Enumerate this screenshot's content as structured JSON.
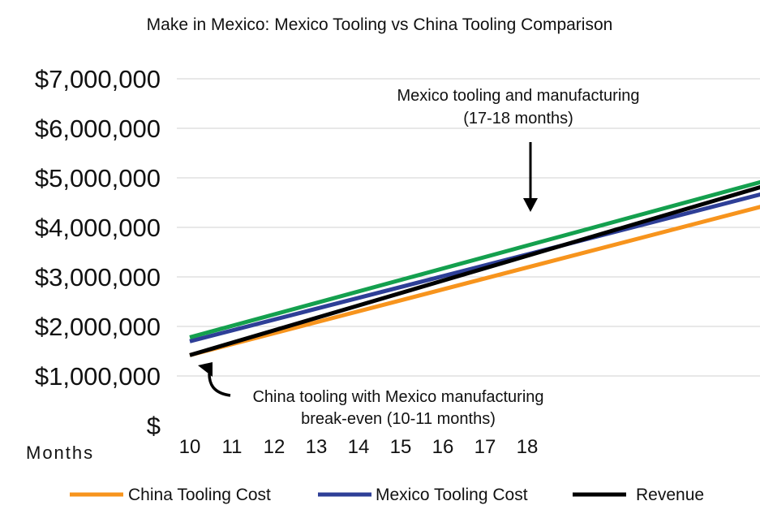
{
  "chart_data": {
    "type": "line",
    "title": "Make in Mexico: Mexico Tooling vs China Tooling Comparison",
    "xlabel": "Months",
    "ylabel": "",
    "categories": [
      "10",
      "11",
      "12",
      "13",
      "14",
      "15",
      "16",
      "17",
      "18"
    ],
    "x_range": [
      10,
      23.6
    ],
    "ylim": [
      0,
      7000000
    ],
    "y_ticks": [
      0,
      1000000,
      2000000,
      3000000,
      4000000,
      5000000,
      6000000,
      7000000
    ],
    "y_tick_labels": [
      "$",
      "$1,000,000",
      "$2,000,000",
      "$3,000,000",
      "$4,000,000",
      "$5,000,000",
      "$6,000,000",
      "$7,000,000"
    ],
    "grid": true,
    "legend_position": "bottom",
    "series": [
      {
        "name": "China Tooling Cost",
        "color": "#f7941d",
        "x": [
          10,
          23.6
        ],
        "values": [
          1420000,
          4430000
        ]
      },
      {
        "name": "Mexico Tooling Cost",
        "color": "#2e3f97",
        "x": [
          10,
          23.6
        ],
        "values": [
          1700000,
          4680000
        ]
      },
      {
        "name": "Revenue",
        "color": "#000000",
        "x": [
          10,
          23.6
        ],
        "values": [
          1420000,
          4830000
        ]
      },
      {
        "name": "",
        "color": "#14a04e",
        "x": [
          10,
          23.6
        ],
        "values": [
          1780000,
          4930000
        ]
      }
    ],
    "legend_entries": [
      "China Tooling Cost",
      "Mexico Tooling Cost",
      "Revenue"
    ],
    "annotations": [
      {
        "line1": "Mexico tooling and manufacturing",
        "line2": "(17-18 months)",
        "arrow": "down"
      },
      {
        "line1": "China tooling with Mexico manufacturing",
        "line2": "break-even (10-11 months)",
        "arrow": "curved-up"
      }
    ]
  }
}
